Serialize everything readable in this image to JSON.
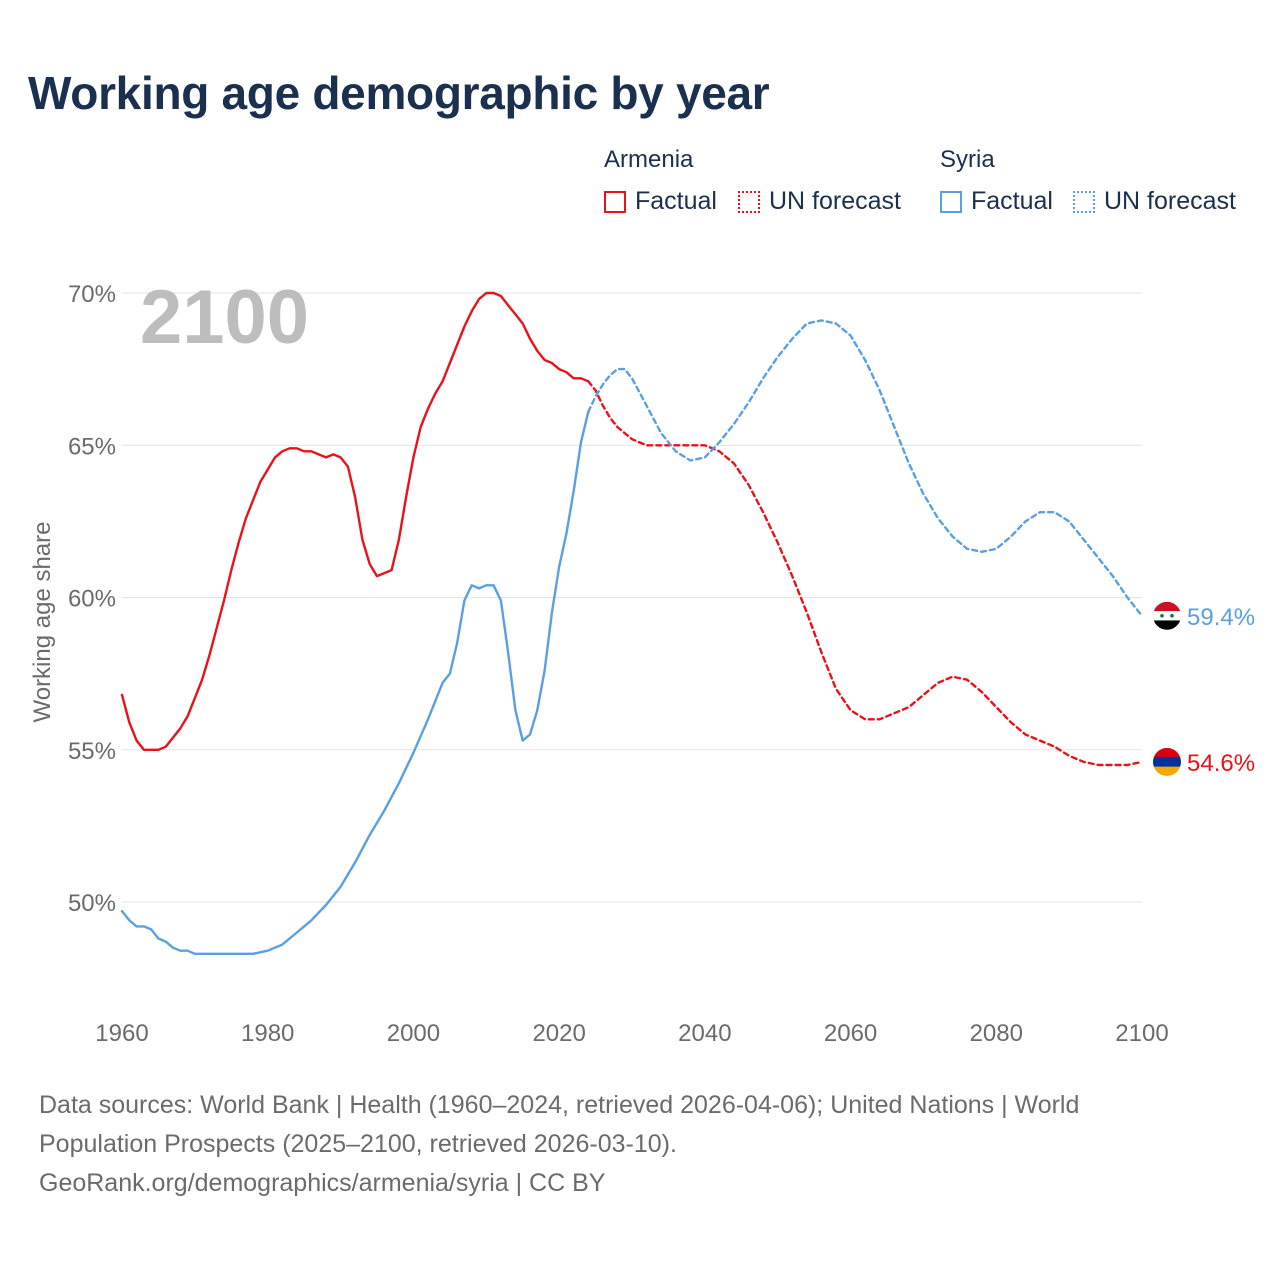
{
  "title": "Working age demographic by year",
  "legend": {
    "groups": [
      {
        "name": "Armenia",
        "color": "#e8131a",
        "items": [
          "Factual",
          "UN forecast"
        ]
      },
      {
        "name": "Syria",
        "color": "#5aa0e0",
        "items": [
          "Factual",
          "UN forecast"
        ]
      }
    ]
  },
  "chart_data": {
    "type": "line",
    "title": "Working age demographic by year",
    "year_watermark": "2100",
    "xlabel": "",
    "ylabel": "Working age share",
    "xlim": [
      1960,
      2100
    ],
    "ylim": [
      46.5,
      70.5
    ],
    "x_ticks": [
      1960,
      1980,
      2000,
      2020,
      2040,
      2060,
      2080,
      2100
    ],
    "y_ticks": [
      50,
      55,
      60,
      65,
      70
    ],
    "y_tick_labels": [
      "50%",
      "55%",
      "60%",
      "65%",
      "70%"
    ],
    "grid": true,
    "series": [
      {
        "name": "Armenia",
        "segment": "Factual",
        "color": "#e8131a",
        "style": "solid",
        "points": [
          [
            1960,
            56.8
          ],
          [
            1961,
            55.9
          ],
          [
            1962,
            55.3
          ],
          [
            1963,
            55.0
          ],
          [
            1964,
            55.0
          ],
          [
            1965,
            55.0
          ],
          [
            1966,
            55.1
          ],
          [
            1967,
            55.4
          ],
          [
            1968,
            55.7
          ],
          [
            1969,
            56.1
          ],
          [
            1970,
            56.7
          ],
          [
            1971,
            57.3
          ],
          [
            1972,
            58.1
          ],
          [
            1973,
            59.0
          ],
          [
            1974,
            59.9
          ],
          [
            1975,
            60.9
          ],
          [
            1976,
            61.8
          ],
          [
            1977,
            62.6
          ],
          [
            1978,
            63.2
          ],
          [
            1979,
            63.8
          ],
          [
            1980,
            64.2
          ],
          [
            1981,
            64.6
          ],
          [
            1982,
            64.8
          ],
          [
            1983,
            64.9
          ],
          [
            1984,
            64.9
          ],
          [
            1985,
            64.8
          ],
          [
            1986,
            64.8
          ],
          [
            1987,
            64.7
          ],
          [
            1988,
            64.6
          ],
          [
            1989,
            64.7
          ],
          [
            1990,
            64.6
          ],
          [
            1991,
            64.3
          ],
          [
            1992,
            63.3
          ],
          [
            1993,
            61.9
          ],
          [
            1994,
            61.1
          ],
          [
            1995,
            60.7
          ],
          [
            1996,
            60.8
          ],
          [
            1997,
            60.9
          ],
          [
            1998,
            61.9
          ],
          [
            1999,
            63.3
          ],
          [
            2000,
            64.6
          ],
          [
            2001,
            65.6
          ],
          [
            2002,
            66.2
          ],
          [
            2003,
            66.7
          ],
          [
            2004,
            67.1
          ],
          [
            2005,
            67.7
          ],
          [
            2006,
            68.3
          ],
          [
            2007,
            68.9
          ],
          [
            2008,
            69.4
          ],
          [
            2009,
            69.8
          ],
          [
            2010,
            70.0
          ],
          [
            2011,
            70.0
          ],
          [
            2012,
            69.9
          ],
          [
            2013,
            69.6
          ],
          [
            2014,
            69.3
          ],
          [
            2015,
            69.0
          ],
          [
            2016,
            68.5
          ],
          [
            2017,
            68.1
          ],
          [
            2018,
            67.8
          ],
          [
            2019,
            67.7
          ],
          [
            2020,
            67.5
          ],
          [
            2021,
            67.4
          ],
          [
            2022,
            67.2
          ],
          [
            2023,
            67.2
          ],
          [
            2024,
            67.1
          ]
        ]
      },
      {
        "name": "Armenia",
        "segment": "UN forecast",
        "color": "#e8131a",
        "style": "dashed",
        "points": [
          [
            2024,
            67.1
          ],
          [
            2025,
            66.8
          ],
          [
            2026,
            66.3
          ],
          [
            2027,
            65.9
          ],
          [
            2028,
            65.6
          ],
          [
            2030,
            65.2
          ],
          [
            2032,
            65.0
          ],
          [
            2035,
            65.0
          ],
          [
            2038,
            65.0
          ],
          [
            2040,
            65.0
          ],
          [
            2042,
            64.8
          ],
          [
            2044,
            64.4
          ],
          [
            2046,
            63.7
          ],
          [
            2048,
            62.8
          ],
          [
            2050,
            61.8
          ],
          [
            2052,
            60.7
          ],
          [
            2054,
            59.5
          ],
          [
            2056,
            58.2
          ],
          [
            2058,
            57.0
          ],
          [
            2060,
            56.3
          ],
          [
            2062,
            56.0
          ],
          [
            2064,
            56.0
          ],
          [
            2066,
            56.2
          ],
          [
            2068,
            56.4
          ],
          [
            2070,
            56.8
          ],
          [
            2072,
            57.2
          ],
          [
            2074,
            57.4
          ],
          [
            2076,
            57.3
          ],
          [
            2078,
            56.9
          ],
          [
            2080,
            56.4
          ],
          [
            2082,
            55.9
          ],
          [
            2084,
            55.5
          ],
          [
            2086,
            55.3
          ],
          [
            2088,
            55.1
          ],
          [
            2090,
            54.8
          ],
          [
            2092,
            54.6
          ],
          [
            2094,
            54.5
          ],
          [
            2096,
            54.5
          ],
          [
            2098,
            54.5
          ],
          [
            2100,
            54.6
          ]
        ]
      },
      {
        "name": "Syria",
        "segment": "Factual",
        "color": "#5aa0e0",
        "style": "solid",
        "points": [
          [
            1960,
            49.7
          ],
          [
            1961,
            49.4
          ],
          [
            1962,
            49.2
          ],
          [
            1963,
            49.2
          ],
          [
            1964,
            49.1
          ],
          [
            1965,
            48.8
          ],
          [
            1966,
            48.7
          ],
          [
            1967,
            48.5
          ],
          [
            1968,
            48.4
          ],
          [
            1969,
            48.4
          ],
          [
            1970,
            48.3
          ],
          [
            1972,
            48.3
          ],
          [
            1975,
            48.3
          ],
          [
            1978,
            48.3
          ],
          [
            1980,
            48.4
          ],
          [
            1982,
            48.6
          ],
          [
            1984,
            49.0
          ],
          [
            1986,
            49.4
          ],
          [
            1988,
            49.9
          ],
          [
            1990,
            50.5
          ],
          [
            1992,
            51.3
          ],
          [
            1994,
            52.2
          ],
          [
            1996,
            53.0
          ],
          [
            1998,
            53.9
          ],
          [
            2000,
            54.9
          ],
          [
            2002,
            56.0
          ],
          [
            2004,
            57.2
          ],
          [
            2005,
            57.5
          ],
          [
            2006,
            58.5
          ],
          [
            2007,
            59.9
          ],
          [
            2008,
            60.4
          ],
          [
            2009,
            60.3
          ],
          [
            2010,
            60.4
          ],
          [
            2011,
            60.4
          ],
          [
            2012,
            59.9
          ],
          [
            2013,
            58.2
          ],
          [
            2014,
            56.3
          ],
          [
            2015,
            55.3
          ],
          [
            2016,
            55.5
          ],
          [
            2017,
            56.3
          ],
          [
            2018,
            57.6
          ],
          [
            2019,
            59.5
          ],
          [
            2020,
            61.0
          ],
          [
            2021,
            62.1
          ],
          [
            2022,
            63.5
          ],
          [
            2023,
            65.1
          ],
          [
            2024,
            66.1
          ]
        ]
      },
      {
        "name": "Syria",
        "segment": "UN forecast",
        "color": "#5aa0e0",
        "style": "dashed",
        "points": [
          [
            2024,
            66.1
          ],
          [
            2025,
            66.6
          ],
          [
            2026,
            67.0
          ],
          [
            2027,
            67.3
          ],
          [
            2028,
            67.5
          ],
          [
            2029,
            67.5
          ],
          [
            2030,
            67.2
          ],
          [
            2032,
            66.3
          ],
          [
            2034,
            65.4
          ],
          [
            2036,
            64.8
          ],
          [
            2038,
            64.5
          ],
          [
            2040,
            64.6
          ],
          [
            2042,
            65.1
          ],
          [
            2044,
            65.7
          ],
          [
            2046,
            66.4
          ],
          [
            2048,
            67.2
          ],
          [
            2050,
            67.9
          ],
          [
            2052,
            68.5
          ],
          [
            2054,
            69.0
          ],
          [
            2056,
            69.1
          ],
          [
            2058,
            69.0
          ],
          [
            2060,
            68.6
          ],
          [
            2062,
            67.8
          ],
          [
            2064,
            66.8
          ],
          [
            2066,
            65.6
          ],
          [
            2068,
            64.4
          ],
          [
            2070,
            63.4
          ],
          [
            2072,
            62.6
          ],
          [
            2074,
            62.0
          ],
          [
            2076,
            61.6
          ],
          [
            2078,
            61.5
          ],
          [
            2080,
            61.6
          ],
          [
            2082,
            62.0
          ],
          [
            2084,
            62.5
          ],
          [
            2086,
            62.8
          ],
          [
            2088,
            62.8
          ],
          [
            2090,
            62.5
          ],
          [
            2092,
            61.9
          ],
          [
            2094,
            61.3
          ],
          [
            2096,
            60.7
          ],
          [
            2098,
            60.0
          ],
          [
            2100,
            59.4
          ]
        ]
      }
    ],
    "end_labels": [
      {
        "country": "Syria",
        "value": 59.4,
        "label": "59.4%",
        "color": "#5aa0e0",
        "flag": "syria-flag"
      },
      {
        "country": "Armenia",
        "value": 54.6,
        "label": "54.6%",
        "color": "#e8131a",
        "flag": "armenia-flag"
      }
    ]
  },
  "footer": {
    "sources": "Data sources: World Bank | Health (1960–2024, retrieved 2026-04-06); United Nations | World Population Prospects (2025–2100, retrieved 2026-03-10).",
    "credit": "GeoRank.org/demographics/armenia/syria | CC BY"
  }
}
